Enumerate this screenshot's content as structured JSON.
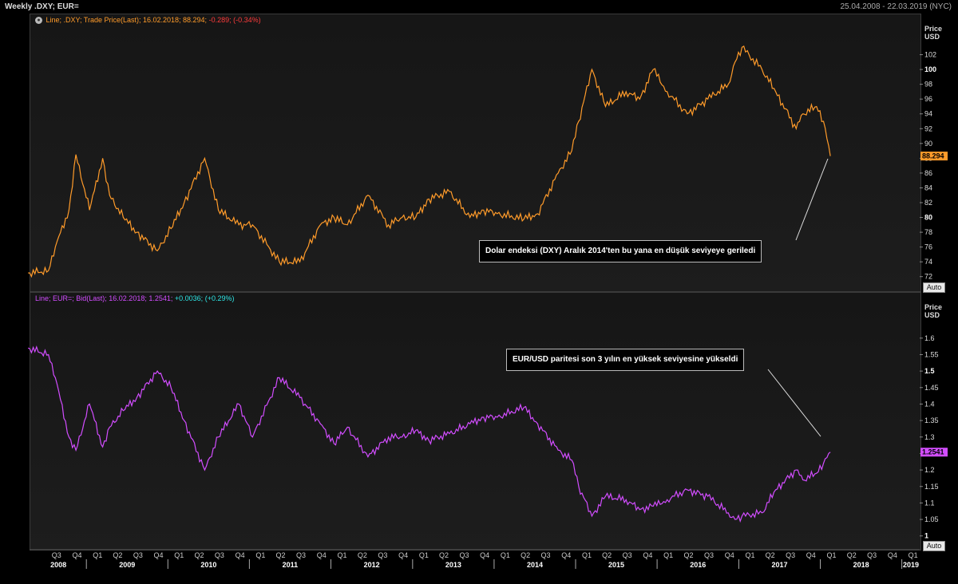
{
  "header": {
    "title": "Weekly .DXY; EUR=",
    "range": "25.04.2008 - 22.03.2019 (NYC)"
  },
  "legends": {
    "top": {
      "prefix": "Line; .DXY; Trade Price(Last); 16.02.2018; 88.294;",
      "change": "-0.289;",
      "change_pct": "(-0.34%)"
    },
    "bottom": {
      "prefix": "Line; EUR=; Bid(Last); 16.02.2018; 1.2541;",
      "change": "+0.0036;",
      "change_pct": "(+0.29%)"
    }
  },
  "axis_headers": {
    "top": [
      "Price",
      "USD"
    ],
    "bottom": [
      "Price",
      "USD"
    ]
  },
  "auto_label": "Auto",
  "annotations": {
    "top": "Dolar endeksi (DXY) Aralık 2014'ten bu yana en düşük seviyeye geriledi",
    "bottom": "EUR/USD paritesi son 3 yılın en yüksek seviyesine yükseldi"
  },
  "colors": {
    "dxy": "#ff9b2a",
    "eur": "#d24dff",
    "negative": "#ff3b3b",
    "positive": "#2ee6e6"
  },
  "x_axis": {
    "quarters": [
      "Q3",
      "Q4",
      "Q1",
      "Q2",
      "Q3",
      "Q4",
      "Q1",
      "Q2",
      "Q3",
      "Q4",
      "Q1",
      "Q2",
      "Q3",
      "Q4",
      "Q1",
      "Q2",
      "Q3",
      "Q4",
      "Q1",
      "Q2",
      "Q3",
      "Q4",
      "Q1",
      "Q2",
      "Q3",
      "Q4",
      "Q1",
      "Q2",
      "Q3",
      "Q4",
      "Q1",
      "Q2",
      "Q3",
      "Q4",
      "Q1",
      "Q2",
      "Q3",
      "Q4",
      "Q1",
      "Q2",
      "Q3",
      "Q4",
      "Q1"
    ],
    "years": [
      "2008",
      "2009",
      "2010",
      "2011",
      "2012",
      "2013",
      "2014",
      "2015",
      "2016",
      "2017",
      "2018",
      "2019"
    ]
  },
  "chart_data": [
    {
      "type": "line",
      "name": ".DXY",
      "ylabel": "Price USD",
      "ylim": [
        71,
        104
      ],
      "yticks": [
        72,
        74,
        76,
        78,
        80,
        82,
        84,
        86,
        88,
        90,
        92,
        94,
        96,
        98,
        100,
        102
      ],
      "bold_ticks": [
        80,
        100
      ],
      "last_value": "88.294",
      "x_range": [
        "2008-04-25",
        "2018-02-16"
      ],
      "x_axis_end": "2019-03-22",
      "x": [
        "2008-04",
        "2008-07",
        "2008-08",
        "2008-10",
        "2008-11",
        "2009-01",
        "2009-03",
        "2009-04",
        "2009-06",
        "2009-08",
        "2009-11",
        "2010-01",
        "2010-03",
        "2010-06",
        "2010-08",
        "2010-11",
        "2011-01",
        "2011-05",
        "2011-08",
        "2011-11",
        "2012-01",
        "2012-03",
        "2012-06",
        "2012-09",
        "2012-11",
        "2013-01",
        "2013-03",
        "2013-06",
        "2013-09",
        "2013-11",
        "2014-01",
        "2014-05",
        "2014-07",
        "2014-10",
        "2014-12",
        "2015-01",
        "2015-03",
        "2015-05",
        "2015-08",
        "2015-10",
        "2015-12",
        "2016-02",
        "2016-05",
        "2016-08",
        "2016-11",
        "2016-12",
        "2017-01",
        "2017-04",
        "2017-06",
        "2017-09",
        "2017-10",
        "2017-12",
        "2018-01",
        "2018-02"
      ],
      "y": [
        72.5,
        72.8,
        76,
        81,
        88.5,
        81,
        88,
        83,
        80,
        78,
        75.5,
        78.5,
        82,
        88,
        81,
        79,
        79,
        74,
        74,
        79,
        80,
        79,
        83,
        79,
        80,
        80,
        82.5,
        83.5,
        80,
        81,
        80.5,
        79.8,
        80.5,
        86,
        89,
        93,
        100,
        95,
        97,
        96,
        100,
        97,
        94,
        96,
        98,
        101,
        103,
        100,
        97,
        92,
        94,
        95,
        93,
        88.3
      ]
    },
    {
      "type": "line",
      "name": "EUR=",
      "ylabel": "Price USD",
      "ylim": [
        0.98,
        1.66
      ],
      "yticks": [
        1,
        1.05,
        1.1,
        1.15,
        1.2,
        1.25,
        1.3,
        1.35,
        1.4,
        1.45,
        1.5,
        1.55,
        1.6
      ],
      "bold_ticks": [
        1,
        1.5
      ],
      "last_value": "1.2541",
      "x_range": [
        "2008-04-25",
        "2018-02-16"
      ],
      "x_axis_end": "2019-03-22",
      "x": [
        "2008-04",
        "2008-07",
        "2008-08",
        "2008-10",
        "2008-11",
        "2009-01",
        "2009-03",
        "2009-04",
        "2009-06",
        "2009-08",
        "2009-11",
        "2010-01",
        "2010-03",
        "2010-06",
        "2010-08",
        "2010-11",
        "2011-01",
        "2011-05",
        "2011-08",
        "2011-11",
        "2012-01",
        "2012-03",
        "2012-06",
        "2012-09",
        "2012-11",
        "2013-01",
        "2013-03",
        "2013-06",
        "2013-09",
        "2013-11",
        "2014-01",
        "2014-05",
        "2014-07",
        "2014-10",
        "2014-12",
        "2015-01",
        "2015-03",
        "2015-05",
        "2015-08",
        "2015-10",
        "2015-12",
        "2016-02",
        "2016-05",
        "2016-08",
        "2016-11",
        "2016-12",
        "2017-01",
        "2017-04",
        "2017-06",
        "2017-09",
        "2017-10",
        "2017-12",
        "2018-01",
        "2018-02"
      ],
      "y": [
        1.57,
        1.55,
        1.48,
        1.3,
        1.26,
        1.4,
        1.27,
        1.33,
        1.38,
        1.42,
        1.5,
        1.45,
        1.35,
        1.2,
        1.3,
        1.4,
        1.3,
        1.48,
        1.42,
        1.34,
        1.28,
        1.33,
        1.24,
        1.3,
        1.3,
        1.32,
        1.29,
        1.31,
        1.34,
        1.36,
        1.36,
        1.39,
        1.34,
        1.26,
        1.23,
        1.15,
        1.06,
        1.12,
        1.11,
        1.08,
        1.09,
        1.11,
        1.14,
        1.12,
        1.07,
        1.05,
        1.06,
        1.07,
        1.14,
        1.2,
        1.17,
        1.19,
        1.22,
        1.2541
      ]
    }
  ]
}
